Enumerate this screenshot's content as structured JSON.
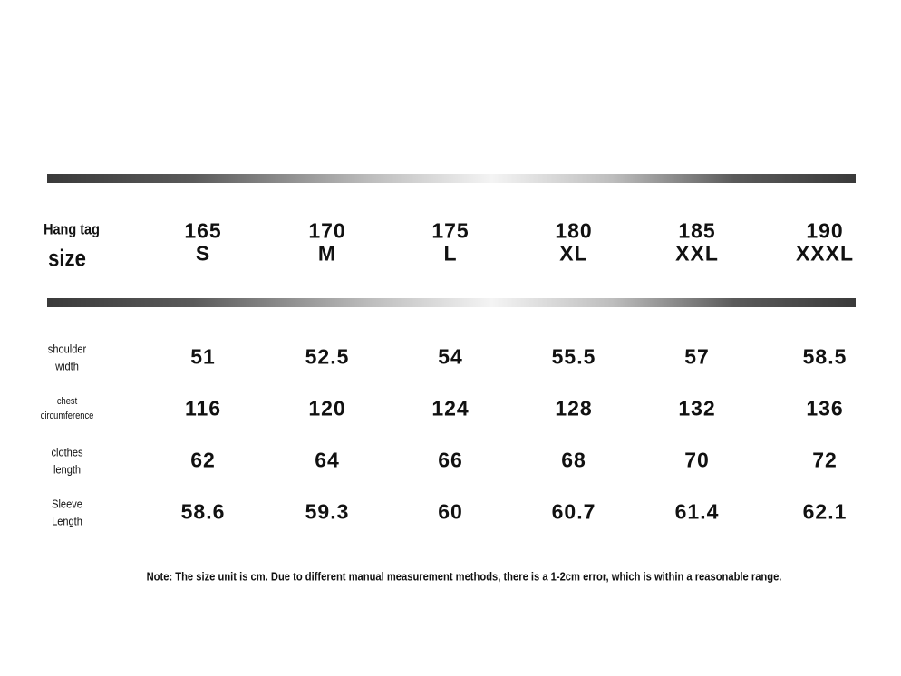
{
  "header": {
    "label": [
      "Hang tag",
      "size"
    ],
    "columns": [
      {
        "height": "165",
        "size": "S"
      },
      {
        "height": "170",
        "size": "M"
      },
      {
        "height": "175",
        "size": "L"
      },
      {
        "height": "180",
        "size": "XL"
      },
      {
        "height": "185",
        "size": "XXL"
      },
      {
        "height": "190",
        "size": "XXXL"
      }
    ]
  },
  "table": {
    "rows": [
      {
        "label": [
          "shoulder",
          "width"
        ],
        "values": [
          "51",
          "52.5",
          "54",
          "55.5",
          "57",
          "58.5"
        ]
      },
      {
        "label": [
          "chest",
          "circumference"
        ],
        "values": [
          "116",
          "120",
          "124",
          "128",
          "132",
          "136"
        ]
      },
      {
        "label": [
          "clothes",
          "length"
        ],
        "values": [
          "62",
          "64",
          "66",
          "68",
          "70",
          "72"
        ]
      },
      {
        "label": [
          "Sleeve",
          "Length"
        ],
        "values": [
          "58.6",
          "59.3",
          "60",
          "60.7",
          "61.4",
          "62.1"
        ]
      }
    ]
  },
  "note": "Note: The size unit is cm. Due to different manual measurement methods, there is a 1-2cm error, which is within a reasonable range."
}
